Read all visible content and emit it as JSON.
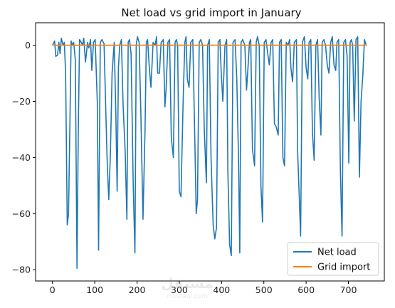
{
  "chart_data": {
    "type": "line",
    "title": "Net load vs grid import in January",
    "xlabel": "",
    "ylabel": "",
    "xlim": [
      -40,
      785
    ],
    "ylim": [
      -84,
      8
    ],
    "xticks": [
      0,
      100,
      200,
      300,
      400,
      500,
      600,
      700
    ],
    "yticks": [
      0,
      -20,
      -40,
      -60,
      -80
    ],
    "ytick_labels": [
      "0",
      "−20",
      "−40",
      "−60",
      "−80"
    ],
    "legend": {
      "position": "lower-right"
    },
    "grid": false,
    "series": [
      {
        "name": "Net load",
        "color": "#1f77b4",
        "x": [
          0,
          5,
          8,
          12,
          15,
          18,
          21,
          25,
          28,
          31,
          35,
          38,
          41,
          44,
          47,
          50,
          54,
          58,
          61,
          64,
          68,
          71,
          74,
          78,
          83,
          86,
          90,
          93,
          97,
          101,
          106,
          109,
          113,
          117,
          122,
          129,
          133,
          137,
          141,
          146,
          150,
          153,
          156,
          159,
          163,
          167,
          172,
          176,
          179,
          182,
          186,
          191,
          195,
          198,
          201,
          205,
          209,
          214,
          219,
          222,
          225,
          229,
          233,
          238,
          243,
          246,
          249,
          253,
          257,
          262,
          266,
          269,
          273,
          277,
          281,
          286,
          290,
          293,
          296,
          300,
          304,
          309,
          313,
          316,
          319,
          323,
          327,
          332,
          337,
          340,
          343,
          347,
          351,
          355,
          359,
          364,
          367,
          371,
          375,
          380,
          384,
          388,
          392,
          396,
          399,
          403,
          408,
          412,
          415,
          419,
          423,
          427,
          432,
          436,
          440,
          443,
          446,
          450,
          455,
          459,
          462,
          466,
          469,
          473,
          478,
          482,
          485,
          489,
          493,
          497,
          501,
          505,
          510,
          513,
          517,
          521,
          525,
          529,
          534,
          537,
          541,
          545,
          549,
          553,
          557,
          561,
          564,
          568,
          572,
          577,
          580,
          584,
          587,
          591,
          596,
          600,
          604,
          607,
          611,
          615,
          619,
          623,
          627,
          631,
          635,
          638,
          642,
          646,
          650,
          654,
          658,
          662,
          666,
          670,
          673,
          677,
          681,
          685,
          689,
          693,
          697,
          701,
          704,
          707,
          710,
          714,
          718,
          722,
          726,
          730,
          734,
          738,
          742
        ],
        "y": [
          0,
          1.5,
          -4,
          -3.5,
          1,
          -3,
          2.5,
          0,
          1,
          -10,
          -64,
          -60,
          -30,
          1.5,
          0,
          1,
          -5,
          -79.5,
          -30,
          2,
          1,
          0,
          2.5,
          -6,
          1,
          -1,
          2,
          -9,
          1,
          2,
          -20,
          -73,
          1,
          2,
          0.5,
          -40,
          -55,
          -39,
          -10,
          1,
          -25,
          -52,
          -8,
          0,
          2,
          -21,
          -38,
          -62,
          1,
          2,
          -3,
          -50,
          -74,
          0,
          3,
          1,
          -24,
          -62,
          -30,
          1,
          2,
          -8,
          -15,
          1,
          0,
          3,
          -10,
          -10,
          1,
          2,
          -22,
          -15,
          1,
          2,
          -33,
          -40,
          1,
          2,
          0,
          -52,
          -54,
          -20,
          1,
          3,
          -12,
          -15,
          1,
          2,
          -36,
          -60,
          -55,
          1,
          2,
          0,
          -30,
          -49,
          0,
          2,
          -40,
          -64,
          -69,
          -65,
          1,
          2,
          -9,
          -20,
          0,
          2,
          -45,
          -71,
          -75,
          1,
          2,
          -12,
          -40,
          -74,
          1,
          2,
          0,
          -16,
          -9,
          1,
          2,
          -37,
          -43,
          1,
          3,
          0,
          -50,
          -63,
          1,
          2,
          -4,
          -7,
          1,
          2,
          -28,
          -29,
          -32,
          1,
          2,
          -40,
          -43,
          1,
          0,
          2,
          -8,
          -13,
          1,
          2,
          -38,
          -55,
          -68,
          1,
          3,
          -8,
          -12,
          1,
          2,
          -31,
          -41,
          0,
          2,
          -19,
          -32,
          1,
          2,
          0,
          -7,
          -10,
          1,
          3,
          -7,
          -9,
          1,
          2,
          -44,
          -68,
          1,
          2,
          -4,
          -42,
          1,
          2,
          0,
          -27,
          2,
          3,
          -47,
          -20,
          -11,
          2,
          0
        ]
      },
      {
        "name": "Grid import",
        "color": "#ff7f0e",
        "x": [
          0,
          743
        ],
        "y": [
          0,
          0
        ]
      }
    ]
  },
  "watermark": "mostaql.com"
}
